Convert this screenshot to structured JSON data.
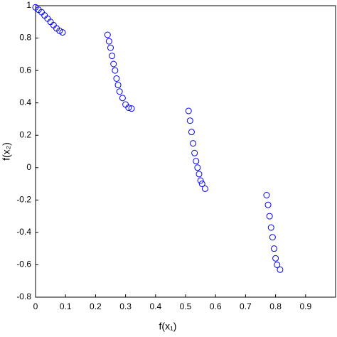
{
  "chart_data": {
    "type": "scatter",
    "xlabel": "f(x₁)",
    "ylabel": "f(x₂)",
    "series": [
      {
        "color": "#0000ff",
        "x": [
          0,
          0.01,
          0.02,
          0.03,
          0.04,
          0.05,
          0.06,
          0.07,
          0.08,
          0.09,
          0.24,
          0.245,
          0.25,
          0.255,
          0.26,
          0.265,
          0.27,
          0.275,
          0.28,
          0.29,
          0.3,
          0.31,
          0.32,
          0.51,
          0.515,
          0.52,
          0.525,
          0.53,
          0.535,
          0.54,
          0.545,
          0.55,
          0.555,
          0.565,
          0.77,
          0.775,
          0.78,
          0.785,
          0.79,
          0.795,
          0.8,
          0.805,
          0.815
        ],
        "values": [
          0.99,
          0.975,
          0.96,
          0.94,
          0.92,
          0.9,
          0.88,
          0.86,
          0.845,
          0.835,
          0.82,
          0.78,
          0.74,
          0.69,
          0.64,
          0.6,
          0.55,
          0.51,
          0.47,
          0.43,
          0.39,
          0.37,
          0.365,
          0.35,
          0.29,
          0.22,
          0.15,
          0.09,
          0.04,
          0,
          -0.04,
          -0.08,
          -0.1,
          -0.13,
          -0.17,
          -0.23,
          -0.3,
          -0.37,
          -0.43,
          -0.5,
          -0.56,
          -0.6,
          -0.63
        ]
      }
    ],
    "xlim": [
      0,
      1
    ],
    "ylim": [
      -0.8,
      1
    ],
    "xticks": [
      0,
      0.1,
      0.2,
      0.3,
      0.4,
      0.5,
      0.6,
      0.7,
      0.8,
      0.9
    ],
    "yticks": [
      -0.8,
      -0.6,
      -0.4,
      -0.2,
      0,
      0.2,
      0.4,
      0.6,
      0.8,
      1
    ],
    "grid": false
  }
}
